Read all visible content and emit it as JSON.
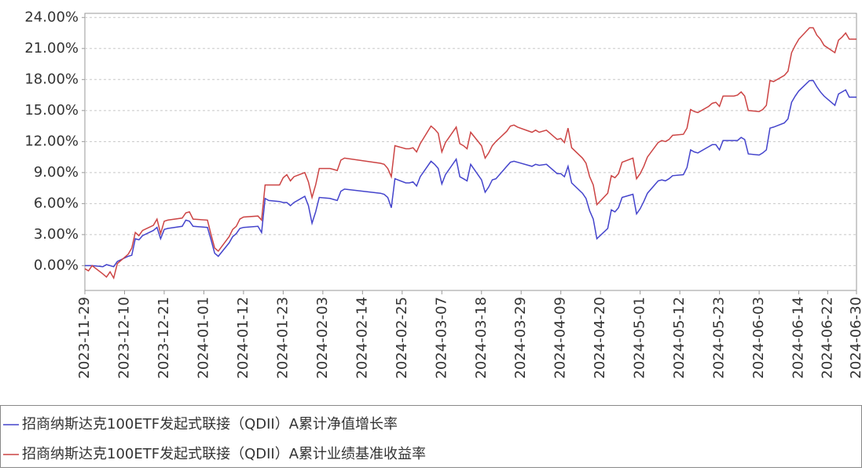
{
  "chart_data": {
    "type": "line",
    "x": [
      "2023-11-29",
      "2023-11-30",
      "2023-12-01",
      "2023-12-04",
      "2023-12-05",
      "2023-12-06",
      "2023-12-07",
      "2023-12-08",
      "2023-12-11",
      "2023-12-12",
      "2023-12-13",
      "2023-12-14",
      "2023-12-15",
      "2023-12-18",
      "2023-12-19",
      "2023-12-20",
      "2023-12-21",
      "2023-12-22",
      "2023-12-26",
      "2023-12-27",
      "2023-12-28",
      "2023-12-29",
      "2024-01-02",
      "2024-01-03",
      "2024-01-04",
      "2024-01-05",
      "2024-01-08",
      "2024-01-09",
      "2024-01-10",
      "2024-01-11",
      "2024-01-12",
      "2024-01-16",
      "2024-01-17",
      "2024-01-18",
      "2024-01-19",
      "2024-01-22",
      "2024-01-23",
      "2024-01-24",
      "2024-01-25",
      "2024-01-26",
      "2024-01-29",
      "2024-01-30",
      "2024-01-31",
      "2024-02-01",
      "2024-02-02",
      "2024-02-05",
      "2024-02-06",
      "2024-02-07",
      "2024-02-08",
      "2024-02-09",
      "2024-02-19",
      "2024-02-20",
      "2024-02-21",
      "2024-02-22",
      "2024-02-23",
      "2024-02-26",
      "2024-02-27",
      "2024-02-28",
      "2024-02-29",
      "2024-03-01",
      "2024-03-04",
      "2024-03-05",
      "2024-03-06",
      "2024-03-07",
      "2024-03-08",
      "2024-03-11",
      "2024-03-12",
      "2024-03-13",
      "2024-03-14",
      "2024-03-15",
      "2024-03-18",
      "2024-03-19",
      "2024-03-20",
      "2024-03-21",
      "2024-03-22",
      "2024-03-25",
      "2024-03-26",
      "2024-03-27",
      "2024-03-28",
      "2024-04-01",
      "2024-04-02",
      "2024-04-03",
      "2024-04-05",
      "2024-04-08",
      "2024-04-09",
      "2024-04-10",
      "2024-04-11",
      "2024-04-12",
      "2024-04-15",
      "2024-04-16",
      "2024-04-17",
      "2024-04-18",
      "2024-04-19",
      "2024-04-22",
      "2024-04-23",
      "2024-04-24",
      "2024-04-25",
      "2024-04-26",
      "2024-04-29",
      "2024-04-30",
      "2024-05-01",
      "2024-05-02",
      "2024-05-03",
      "2024-05-06",
      "2024-05-07",
      "2024-05-08",
      "2024-05-09",
      "2024-05-10",
      "2024-05-13",
      "2024-05-14",
      "2024-05-15",
      "2024-05-16",
      "2024-05-17",
      "2024-05-20",
      "2024-05-21",
      "2024-05-22",
      "2024-05-23",
      "2024-05-24",
      "2024-05-27",
      "2024-05-28",
      "2024-05-29",
      "2024-05-30",
      "2024-05-31",
      "2024-06-03",
      "2024-06-04",
      "2024-06-05",
      "2024-06-06",
      "2024-06-07",
      "2024-06-10",
      "2024-06-11",
      "2024-06-12",
      "2024-06-13",
      "2024-06-14",
      "2024-06-17",
      "2024-06-18",
      "2024-06-19",
      "2024-06-20",
      "2024-06-21",
      "2024-06-24",
      "2024-06-25",
      "2024-06-26",
      "2024-06-27",
      "2024-06-28",
      "2024-06-30"
    ],
    "series": [
      {
        "name": "招商纳斯达克100ETF发起式联接（QDII）A累计净值增长率",
        "color": "#4444cc",
        "values": [
          0,
          0,
          0,
          -0.1,
          0.1,
          0,
          -0.1,
          0.4,
          0.9,
          1.0,
          2.6,
          2.5,
          2.9,
          3.4,
          3.7,
          2.6,
          3.5,
          3.6,
          3.8,
          4.4,
          4.3,
          3.8,
          3.7,
          2.5,
          1.2,
          0.9,
          2.2,
          2.8,
          3.1,
          3.6,
          3.7,
          3.8,
          3.2,
          6.5,
          6.3,
          6.2,
          6.1,
          6.1,
          5.8,
          6.1,
          6.7,
          5.8,
          4.1,
          5.2,
          6.6,
          6.5,
          6.4,
          6.3,
          7.2,
          7.4,
          7.0,
          6.9,
          6.6,
          5.6,
          8.4,
          8.0,
          8.0,
          8.1,
          7.7,
          8.6,
          10.1,
          9.8,
          9.4,
          7.9,
          8.8,
          10.3,
          8.6,
          8.4,
          8.2,
          9.8,
          8.3,
          7.1,
          7.6,
          8.3,
          8.4,
          9.6,
          10.0,
          10.1,
          10.0,
          9.6,
          9.8,
          9.7,
          9.8,
          8.9,
          8.9,
          8.6,
          9.6,
          8.0,
          7.0,
          6.5,
          5.3,
          4.5,
          2.6,
          3.6,
          5.4,
          5.2,
          5.6,
          6.6,
          6.9,
          5.0,
          5.5,
          6.2,
          7.0,
          8.2,
          8.3,
          8.2,
          8.4,
          8.7,
          8.8,
          9.5,
          11.2,
          11.0,
          10.9,
          11.5,
          11.7,
          11.7,
          11.2,
          12.1,
          12.1,
          12.1,
          12.4,
          12.2,
          10.8,
          10.7,
          10.9,
          11.2,
          13.3,
          13.4,
          13.8,
          14.2,
          15.8,
          16.4,
          16.9,
          17.9,
          17.9,
          17.3,
          16.8,
          16.4,
          15.5,
          16.6,
          16.8,
          17.0,
          16.3,
          16.3
        ]
      },
      {
        "name": "招商纳斯达克100ETF发起式联接（QDII）A累计业绩基准收益率",
        "color": "#cc4444",
        "values": [
          -0.3,
          -0.5,
          0,
          -0.8,
          -1.1,
          -0.6,
          -1.2,
          0.2,
          1.1,
          1.7,
          3.2,
          2.9,
          3.4,
          3.9,
          4.5,
          3.1,
          4.3,
          4.4,
          4.6,
          5.1,
          5.2,
          4.5,
          4.4,
          3.0,
          1.7,
          1.4,
          2.8,
          3.5,
          3.8,
          4.5,
          4.7,
          4.8,
          4.4,
          7.8,
          7.8,
          7.8,
          8.5,
          8.8,
          8.2,
          8.6,
          9.0,
          8.1,
          6.6,
          7.8,
          9.4,
          9.4,
          9.3,
          9.2,
          10.2,
          10.4,
          9.9,
          9.8,
          9.4,
          8.6,
          11.6,
          11.3,
          11.3,
          11.4,
          11.0,
          11.8,
          13.5,
          13.2,
          12.8,
          11.0,
          11.9,
          13.4,
          11.8,
          11.6,
          11.3,
          12.9,
          11.6,
          10.4,
          10.9,
          11.6,
          12.0,
          13.0,
          13.5,
          13.6,
          13.4,
          12.9,
          13.1,
          12.9,
          13.1,
          12.2,
          12.3,
          11.9,
          13.3,
          11.4,
          10.4,
          9.9,
          8.6,
          7.8,
          5.9,
          7.0,
          8.7,
          8.5,
          8.9,
          10.0,
          10.4,
          8.4,
          8.9,
          9.6,
          10.5,
          11.9,
          12.1,
          12.0,
          12.2,
          12.6,
          12.7,
          13.3,
          15.1,
          14.9,
          14.8,
          15.4,
          15.7,
          15.8,
          15.4,
          16.4,
          16.4,
          16.5,
          16.8,
          16.4,
          15.0,
          14.9,
          15.1,
          15.5,
          17.9,
          17.8,
          18.4,
          18.8,
          20.6,
          21.3,
          21.9,
          23.0,
          23.0,
          22.3,
          21.9,
          21.3,
          20.6,
          21.8,
          22.1,
          22.5,
          21.9,
          21.9
        ]
      }
    ],
    "xlim": [
      "2023-11-29",
      "2024-06-30"
    ],
    "xticks": [
      "2023-11-29",
      "2023-12-10",
      "2023-12-21",
      "2024-01-01",
      "2024-01-12",
      "2024-01-23",
      "2024-02-03",
      "2024-02-14",
      "2024-02-25",
      "2024-03-07",
      "2024-03-18",
      "2024-03-29",
      "2024-04-09",
      "2024-04-20",
      "2024-05-01",
      "2024-05-12",
      "2024-05-23",
      "2024-06-03",
      "2024-06-14",
      "2024-06-22",
      "2024-06-30"
    ],
    "ylim": [
      -2.4,
      24.4
    ],
    "yticks": [
      {
        "value": 0,
        "label": "0.00%"
      },
      {
        "value": 3,
        "label": "3.00%"
      },
      {
        "value": 6,
        "label": "6.00%"
      },
      {
        "value": 9,
        "label": "9.00%"
      },
      {
        "value": 12,
        "label": "12.00%"
      },
      {
        "value": 15,
        "label": "15.00%"
      },
      {
        "value": 18,
        "label": "18.00%"
      },
      {
        "value": 21,
        "label": "21.00%"
      },
      {
        "value": 24,
        "label": "24.00%"
      }
    ],
    "grid": true
  }
}
